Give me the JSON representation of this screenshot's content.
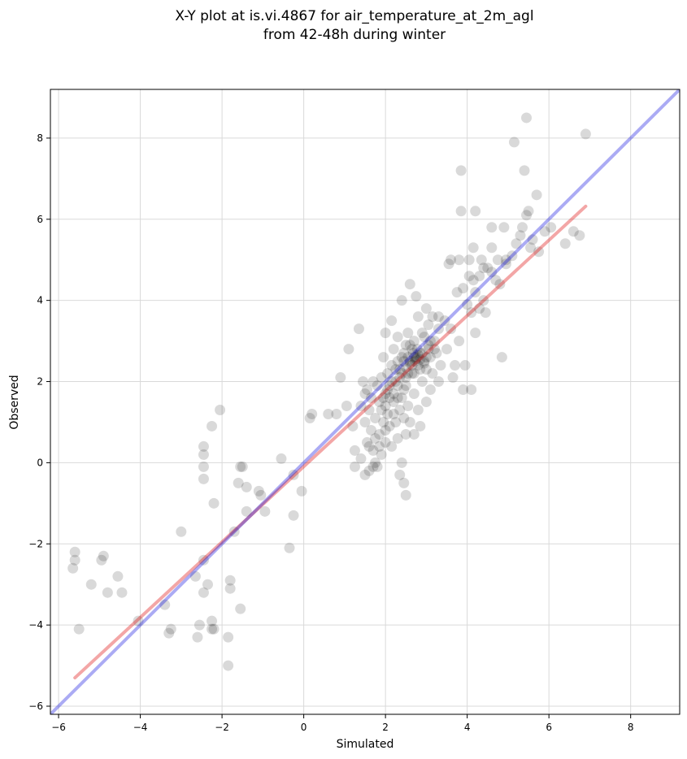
{
  "chart_data": {
    "type": "scatter",
    "title_line1": "X-Y plot at is.vi.4867 for air_temperature_at_2m_agl",
    "title_line2": "from 42-48h during winter",
    "xlabel": "Simulated",
    "ylabel": "Observed",
    "xlim": [
      -6.2,
      9.2
    ],
    "ylim": [
      -6.2,
      9.2
    ],
    "xticks": [
      -6,
      -4,
      -2,
      0,
      2,
      4,
      6,
      8
    ],
    "yticks": [
      -6,
      -4,
      -2,
      0,
      2,
      4,
      6,
      8
    ],
    "xtick_labels": [
      "−6",
      "−4",
      "−2",
      "0",
      "2",
      "4",
      "6",
      "8"
    ],
    "ytick_labels": [
      "−6",
      "−4",
      "−2",
      "0",
      "2",
      "4",
      "6",
      "8"
    ],
    "grid": true,
    "colors": {
      "points": "#000000",
      "identity_line": "#0000dd",
      "fit_line": "#dd0000",
      "grid": "#d9d9d9"
    },
    "identity_line": {
      "x": [
        -6.2,
        9.2
      ],
      "y": [
        -6.2,
        9.2
      ]
    },
    "fit_line": {
      "x": [
        -5.6,
        6.9
      ],
      "y": [
        -5.3,
        6.32
      ]
    },
    "points": [
      [
        -5.6,
        -2.2
      ],
      [
        -5.6,
        -2.4
      ],
      [
        -5.65,
        -2.6
      ],
      [
        -5.5,
        -4.1
      ],
      [
        -5.2,
        -3.0
      ],
      [
        -4.9,
        -2.3
      ],
      [
        -4.95,
        -2.4
      ],
      [
        -4.8,
        -3.2
      ],
      [
        -4.55,
        -2.8
      ],
      [
        -4.45,
        -3.2
      ],
      [
        -4.05,
        -3.9
      ],
      [
        -3.4,
        -3.5
      ],
      [
        -3.3,
        -4.2
      ],
      [
        -3.25,
        -4.1
      ],
      [
        -3.0,
        -1.7
      ],
      [
        -2.65,
        -2.8
      ],
      [
        -2.6,
        -4.3
      ],
      [
        -2.55,
        -4.0
      ],
      [
        -2.45,
        -2.4
      ],
      [
        -2.45,
        -3.2
      ],
      [
        -2.35,
        -3.0
      ],
      [
        -2.25,
        -4.1
      ],
      [
        -2.2,
        -4.1
      ],
      [
        -2.25,
        -3.9
      ],
      [
        -2.2,
        -1.0
      ],
      [
        -2.25,
        0.9
      ],
      [
        -2.05,
        1.3
      ],
      [
        -2.45,
        0.4
      ],
      [
        -2.45,
        0.2
      ],
      [
        -2.45,
        -0.1
      ],
      [
        -2.45,
        -0.4
      ],
      [
        -1.85,
        -4.3
      ],
      [
        -1.85,
        -5.0
      ],
      [
        -1.8,
        -2.9
      ],
      [
        -1.8,
        -3.1
      ],
      [
        -1.7,
        -1.7
      ],
      [
        -1.55,
        -3.6
      ],
      [
        -1.55,
        -0.1
      ],
      [
        -1.5,
        -0.1
      ],
      [
        -1.6,
        -0.5
      ],
      [
        -1.4,
        -0.6
      ],
      [
        -1.4,
        -1.2
      ],
      [
        -1.1,
        -0.7
      ],
      [
        -1.05,
        -0.8
      ],
      [
        -0.95,
        -1.2
      ],
      [
        -0.55,
        0.1
      ],
      [
        -0.35,
        -2.1
      ],
      [
        -0.25,
        -0.3
      ],
      [
        -0.25,
        -1.3
      ],
      [
        -0.05,
        -0.7
      ],
      [
        0.15,
        1.1
      ],
      [
        0.2,
        1.2
      ],
      [
        0.6,
        1.2
      ],
      [
        0.8,
        1.2
      ],
      [
        0.9,
        2.1
      ],
      [
        1.05,
        1.4
      ],
      [
        1.1,
        2.8
      ],
      [
        1.2,
        0.9
      ],
      [
        1.25,
        0.3
      ],
      [
        1.25,
        -0.1
      ],
      [
        1.35,
        3.3
      ],
      [
        1.4,
        0.1
      ],
      [
        1.4,
        1.4
      ],
      [
        1.45,
        2.0
      ],
      [
        1.5,
        1.7
      ],
      [
        1.5,
        1.0
      ],
      [
        1.5,
        -0.3
      ],
      [
        1.55,
        0.5
      ],
      [
        1.55,
        1.8
      ],
      [
        1.6,
        -0.2
      ],
      [
        1.6,
        0.4
      ],
      [
        1.6,
        1.3
      ],
      [
        1.65,
        0.8
      ],
      [
        1.65,
        1.6
      ],
      [
        1.7,
        0.3
      ],
      [
        1.7,
        2.0
      ],
      [
        1.75,
        0.6
      ],
      [
        1.75,
        1.1
      ],
      [
        1.8,
        1.9
      ],
      [
        1.8,
        -0.1
      ],
      [
        1.85,
        0.7
      ],
      [
        1.85,
        1.5
      ],
      [
        1.9,
        2.1
      ],
      [
        1.9,
        0.2
      ],
      [
        1.95,
        1.0
      ],
      [
        1.95,
        2.6
      ],
      [
        2.0,
        3.2
      ],
      [
        2.0,
        1.7
      ],
      [
        2.0,
        0.5
      ],
      [
        2.05,
        2.2
      ],
      [
        2.05,
        1.2
      ],
      [
        2.1,
        1.9
      ],
      [
        2.1,
        0.9
      ],
      [
        2.15,
        3.5
      ],
      [
        2.15,
        2.4
      ],
      [
        2.15,
        0.4
      ],
      [
        2.2,
        1.5
      ],
      [
        2.2,
        2.8
      ],
      [
        2.25,
        1.0
      ],
      [
        2.25,
        2.0
      ],
      [
        2.3,
        1.6
      ],
      [
        2.3,
        3.1
      ],
      [
        2.3,
        0.6
      ],
      [
        2.35,
        2.3
      ],
      [
        2.35,
        1.3
      ],
      [
        2.35,
        -0.3
      ],
      [
        2.4,
        2.6
      ],
      [
        2.4,
        4.0
      ],
      [
        2.4,
        0.0
      ],
      [
        2.45,
        1.8
      ],
      [
        2.45,
        -0.5
      ],
      [
        2.45,
        1.1
      ],
      [
        2.5,
        2.9
      ],
      [
        2.5,
        2.1
      ],
      [
        2.5,
        -0.8
      ],
      [
        2.5,
        0.7
      ],
      [
        2.55,
        1.4
      ],
      [
        2.55,
        3.2
      ],
      [
        2.6,
        2.5
      ],
      [
        2.6,
        4.4
      ],
      [
        2.6,
        1.0
      ],
      [
        2.65,
        2.2
      ],
      [
        2.65,
        2.8
      ],
      [
        2.7,
        1.7
      ],
      [
        2.7,
        3.0
      ],
      [
        2.7,
        0.7
      ],
      [
        2.75,
        2.6
      ],
      [
        2.75,
        4.1
      ],
      [
        2.8,
        2.4
      ],
      [
        2.8,
        1.3
      ],
      [
        2.8,
        3.6
      ],
      [
        2.85,
        2.7
      ],
      [
        2.85,
        0.9
      ],
      [
        2.9,
        2.0
      ],
      [
        2.9,
        3.2
      ],
      [
        2.95,
        2.5
      ],
      [
        3.0,
        2.3
      ],
      [
        3.0,
        3.8
      ],
      [
        3.0,
        1.5
      ],
      [
        3.05,
        2.9
      ],
      [
        3.05,
        3.4
      ],
      [
        3.1,
        2.6
      ],
      [
        3.1,
        1.8
      ],
      [
        3.15,
        2.2
      ],
      [
        3.2,
        3.0
      ],
      [
        3.25,
        2.7
      ],
      [
        3.3,
        3.6
      ],
      [
        3.3,
        2.0
      ],
      [
        3.35,
        2.4
      ],
      [
        3.45,
        3.5
      ],
      [
        3.5,
        2.8
      ],
      [
        3.55,
        4.9
      ],
      [
        3.6,
        5.0
      ],
      [
        3.6,
        3.3
      ],
      [
        3.65,
        2.1
      ],
      [
        3.7,
        2.4
      ],
      [
        3.75,
        4.2
      ],
      [
        3.8,
        5.0
      ],
      [
        3.8,
        3.0
      ],
      [
        3.85,
        6.2
      ],
      [
        3.85,
        7.2
      ],
      [
        3.9,
        4.3
      ],
      [
        3.9,
        1.8
      ],
      [
        3.95,
        2.4
      ],
      [
        4.0,
        3.9
      ],
      [
        4.05,
        5.0
      ],
      [
        4.1,
        1.8
      ],
      [
        4.1,
        3.7
      ],
      [
        4.15,
        5.3
      ],
      [
        4.15,
        4.5
      ],
      [
        4.2,
        3.2
      ],
      [
        4.2,
        6.2
      ],
      [
        4.3,
        4.6
      ],
      [
        4.35,
        5.0
      ],
      [
        4.4,
        4.8
      ],
      [
        4.45,
        3.7
      ],
      [
        4.6,
        5.8
      ],
      [
        4.6,
        5.3
      ],
      [
        4.7,
        4.5
      ],
      [
        4.75,
        5.0
      ],
      [
        4.8,
        4.4
      ],
      [
        4.85,
        2.6
      ],
      [
        4.9,
        5.8
      ],
      [
        4.95,
        5.0
      ],
      [
        5.15,
        7.9
      ],
      [
        5.2,
        5.4
      ],
      [
        5.35,
        5.8
      ],
      [
        5.4,
        7.2
      ],
      [
        5.45,
        8.5
      ],
      [
        5.45,
        6.1
      ],
      [
        5.5,
        6.2
      ],
      [
        5.55,
        5.3
      ],
      [
        5.7,
        6.6
      ],
      [
        5.75,
        5.2
      ],
      [
        5.9,
        5.7
      ],
      [
        6.05,
        5.8
      ],
      [
        6.4,
        5.4
      ],
      [
        6.6,
        5.7
      ],
      [
        6.75,
        5.6
      ],
      [
        6.9,
        8.1
      ],
      [
        2.7,
        2.6
      ],
      [
        2.75,
        2.55
      ],
      [
        2.8,
        2.65
      ],
      [
        2.72,
        2.5
      ],
      [
        2.68,
        2.7
      ],
      [
        2.85,
        2.55
      ],
      [
        2.6,
        2.45
      ],
      [
        2.9,
        2.7
      ],
      [
        2.65,
        2.4
      ],
      [
        2.78,
        2.8
      ],
      [
        2.55,
        2.6
      ],
      [
        2.95,
        2.45
      ],
      [
        2.5,
        2.35
      ],
      [
        3.0,
        2.6
      ],
      [
        2.45,
        2.5
      ],
      [
        2.6,
        2.9
      ],
      [
        2.85,
        2.3
      ],
      [
        2.7,
        2.2
      ],
      [
        3.05,
        2.8
      ],
      [
        2.4,
        2.2
      ],
      [
        2.3,
        1.9
      ],
      [
        2.2,
        1.7
      ],
      [
        2.1,
        1.6
      ],
      [
        2.0,
        1.4
      ],
      [
        1.9,
        1.3
      ],
      [
        2.35,
        2.1
      ],
      [
        2.25,
        2.3
      ],
      [
        2.15,
        2.0
      ],
      [
        2.05,
        1.8
      ],
      [
        1.95,
        1.6
      ],
      [
        2.2,
        1.2
      ],
      [
        2.0,
        0.8
      ],
      [
        1.85,
        0.4
      ],
      [
        1.75,
        0.0
      ],
      [
        1.7,
        -0.1
      ],
      [
        2.4,
        1.6
      ],
      [
        2.5,
        1.9
      ],
      [
        2.55,
        2.2
      ],
      [
        2.3,
        2.5
      ],
      [
        2.45,
        2.7
      ],
      [
        3.1,
        3.0
      ],
      [
        3.2,
        2.8
      ],
      [
        3.3,
        3.3
      ],
      [
        3.15,
        3.6
      ],
      [
        2.95,
        3.1
      ],
      [
        4.2,
        4.2
      ],
      [
        4.4,
        4.0
      ],
      [
        4.6,
        4.7
      ],
      [
        4.3,
        3.8
      ],
      [
        4.05,
        4.6
      ],
      [
        5.1,
        5.1
      ],
      [
        5.3,
        5.6
      ],
      [
        4.95,
        4.9
      ],
      [
        5.6,
        5.5
      ],
      [
        4.5,
        4.8
      ]
    ]
  }
}
